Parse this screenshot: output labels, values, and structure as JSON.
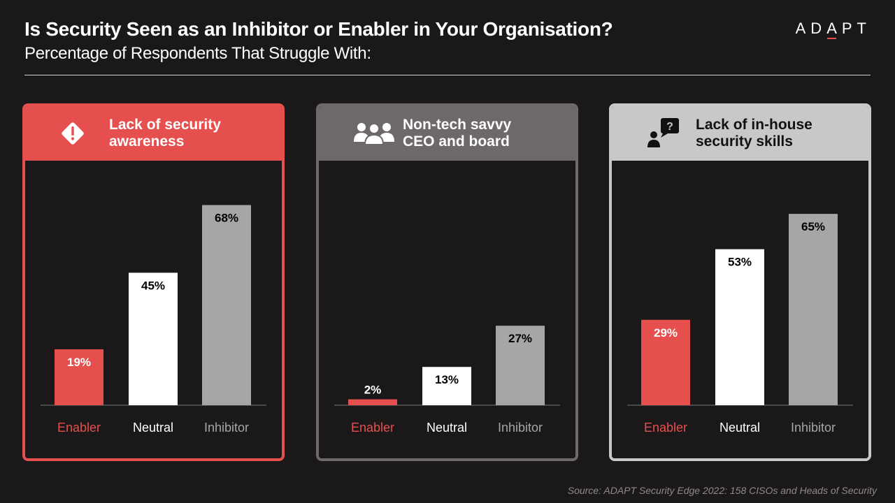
{
  "header": {
    "title": "Is Security Seen as an Inhibitor or Enabler in Your Organisation?",
    "subtitle": "Percentage of Respondents That Struggle With:",
    "logo_text": "ADAPT"
  },
  "source": "Source: ADAPT Security Edge 2022: 158 CISOs and Heads of Security",
  "colors": {
    "enabler": "#e5504f",
    "neutral": "#ffffff",
    "inhibitor": "#a6a6a6",
    "panel1": "#e5504f",
    "panel2": "#6e6868",
    "panel3": "#c8c8c8",
    "background": "#1b1819"
  },
  "panels": [
    {
      "title": "Lack of security\nawareness",
      "icon": "warning-diamond-icon"
    },
    {
      "title": "Non-tech savvy\nCEO and board",
      "icon": "people-group-icon"
    },
    {
      "title": "Lack of in-house\nsecurity skills",
      "icon": "person-question-icon"
    }
  ],
  "chart_data": [
    {
      "type": "bar",
      "title": "Lack of security awareness",
      "categories": [
        "Enabler",
        "Neutral",
        "Inhibitor"
      ],
      "values": [
        19,
        45,
        68
      ],
      "value_labels": [
        "19%",
        "45%",
        "68%"
      ],
      "ylim": [
        0,
        75
      ],
      "grid": false
    },
    {
      "type": "bar",
      "title": "Non-tech savvy CEO and board",
      "categories": [
        "Enabler",
        "Neutral",
        "Inhibitor"
      ],
      "values": [
        2,
        13,
        27
      ],
      "value_labels": [
        "2%",
        "13%",
        "27%"
      ],
      "ylim": [
        0,
        75
      ],
      "grid": false
    },
    {
      "type": "bar",
      "title": "Lack of in-house security skills",
      "categories": [
        "Enabler",
        "Neutral",
        "Inhibitor"
      ],
      "values": [
        29,
        53,
        65
      ],
      "value_labels": [
        "29%",
        "53%",
        "65%"
      ],
      "ylim": [
        0,
        75
      ],
      "grid": false
    }
  ]
}
